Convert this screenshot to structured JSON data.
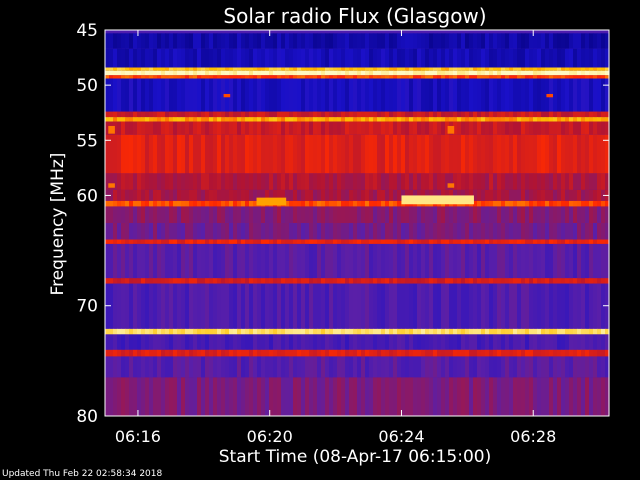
{
  "chart_data": {
    "type": "heatmap",
    "title": "Solar radio Flux (Glasgow)",
    "xlabel": "Start Time (08-Apr-17 06:15:00)",
    "ylabel": "Frequency [MHz]",
    "x_range_minutes": [
      0,
      15.3
    ],
    "ylim": [
      45,
      80
    ],
    "y_inverted": true,
    "x_ticks": [
      "06:16",
      "06:20",
      "06:24",
      "06:28"
    ],
    "x_tick_minutes": [
      1,
      5,
      9,
      13
    ],
    "y_ticks": [
      45,
      50,
      55,
      60,
      70,
      80
    ],
    "colormap": [
      "#04007a",
      "#1a10c8",
      "#5a1fa8",
      "#b01434",
      "#ff2a00",
      "#ffc000",
      "#fff8c0"
    ],
    "bands": [
      {
        "from": 45.3,
        "to": 46.7,
        "level": 0.1
      },
      {
        "from": 46.7,
        "to": 48.4,
        "level": 0.13
      },
      {
        "from": 48.4,
        "to": 48.7,
        "level": 0.85
      },
      {
        "from": 48.7,
        "to": 49.1,
        "level": 1.0
      },
      {
        "from": 49.1,
        "to": 49.4,
        "level": 0.7
      },
      {
        "from": 49.4,
        "to": 52.4,
        "level": 0.15
      },
      {
        "from": 52.4,
        "to": 52.9,
        "level": 0.55
      },
      {
        "from": 52.9,
        "to": 53.3,
        "level": 0.8
      },
      {
        "from": 53.3,
        "to": 54.5,
        "level": 0.55
      },
      {
        "from": 54.5,
        "to": 58.0,
        "level": 0.6
      },
      {
        "from": 58.0,
        "to": 59.5,
        "level": 0.5
      },
      {
        "from": 59.5,
        "to": 60.5,
        "level": 0.48
      },
      {
        "from": 60.5,
        "to": 61.0,
        "level": 0.7
      },
      {
        "from": 61.0,
        "to": 62.5,
        "level": 0.42
      },
      {
        "from": 62.5,
        "to": 64.0,
        "level": 0.38
      },
      {
        "from": 64.0,
        "to": 64.4,
        "level": 0.62
      },
      {
        "from": 64.4,
        "to": 67.5,
        "level": 0.32
      },
      {
        "from": 67.5,
        "to": 68.0,
        "level": 0.58
      },
      {
        "from": 68.0,
        "to": 72.1,
        "level": 0.3
      },
      {
        "from": 72.1,
        "to": 72.6,
        "level": 0.92
      },
      {
        "from": 72.6,
        "to": 74.0,
        "level": 0.28
      },
      {
        "from": 74.0,
        "to": 74.6,
        "level": 0.6
      },
      {
        "from": 74.6,
        "to": 76.5,
        "level": 0.32
      },
      {
        "from": 76.5,
        "to": 80.0,
        "level": 0.4
      }
    ],
    "bursts": [
      {
        "freq_from": 60.2,
        "freq_to": 60.9,
        "t_from": 4.6,
        "t_to": 5.5,
        "level": 0.8
      },
      {
        "freq_from": 60.0,
        "freq_to": 60.8,
        "t_from": 9.0,
        "t_to": 11.2,
        "level": 0.95
      },
      {
        "freq_from": 53.7,
        "freq_to": 54.4,
        "t_from": 10.4,
        "t_to": 10.6,
        "level": 0.75
      },
      {
        "freq_from": 58.9,
        "freq_to": 59.3,
        "t_from": 10.4,
        "t_to": 10.6,
        "level": 0.75
      },
      {
        "freq_from": 53.7,
        "freq_to": 54.4,
        "t_from": 0.1,
        "t_to": 0.3,
        "level": 0.75
      },
      {
        "freq_from": 58.9,
        "freq_to": 59.3,
        "t_from": 0.1,
        "t_to": 0.3,
        "level": 0.75
      },
      {
        "freq_from": 50.8,
        "freq_to": 51.1,
        "t_from": 3.6,
        "t_to": 3.8,
        "level": 0.7
      },
      {
        "freq_from": 50.8,
        "freq_to": 51.1,
        "t_from": 13.4,
        "t_to": 13.6,
        "level": 0.7
      }
    ]
  },
  "footer": "Updated Thu Feb 22 02:58:34 2018"
}
